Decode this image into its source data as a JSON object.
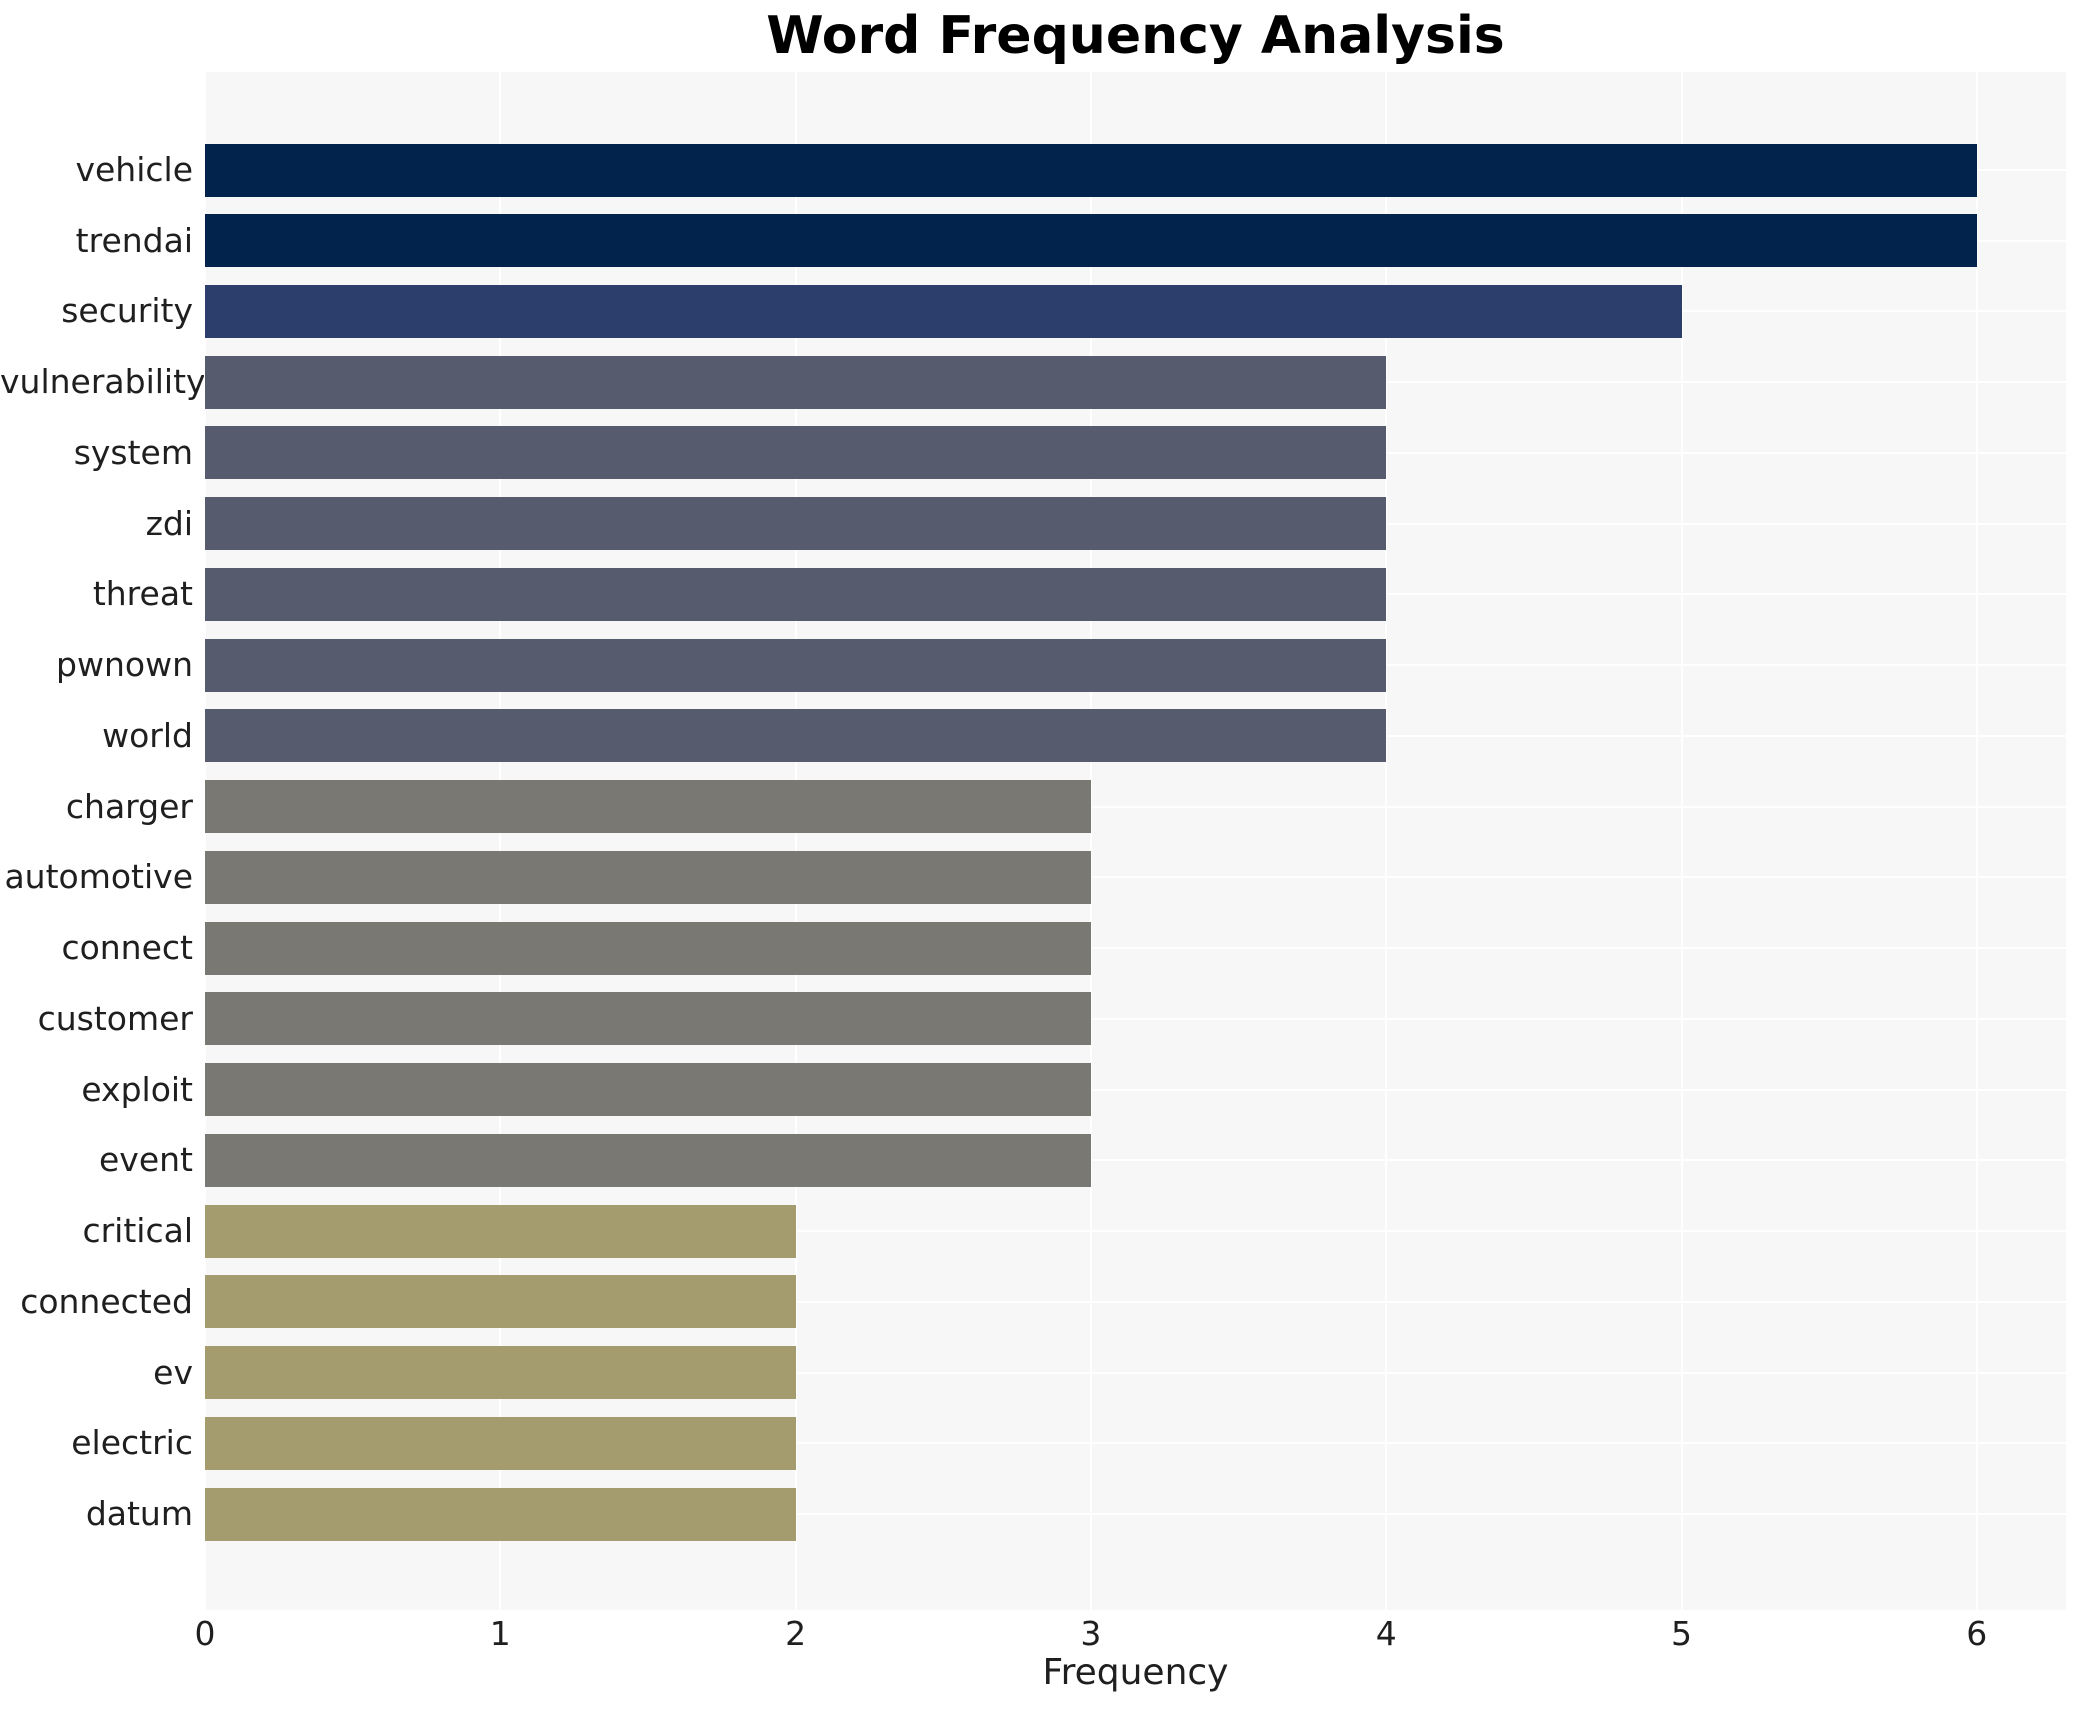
{
  "chart_data": {
    "type": "bar",
    "orientation": "horizontal",
    "title": "Word Frequency Analysis",
    "xlabel": "Frequency",
    "ylabel": "",
    "categories": [
      "vehicle",
      "trendai",
      "security",
      "vulnerability",
      "system",
      "zdi",
      "threat",
      "pwnown",
      "world",
      "charger",
      "automotive",
      "connect",
      "customer",
      "exploit",
      "event",
      "critical",
      "connected",
      "ev",
      "electric",
      "datum"
    ],
    "values": [
      6,
      6,
      5,
      4,
      4,
      4,
      4,
      4,
      4,
      3,
      3,
      3,
      3,
      3,
      3,
      2,
      2,
      2,
      2,
      2
    ],
    "bar_colors": [
      "#02234c",
      "#02234c",
      "#2c3e6b",
      "#565b6d",
      "#565b6d",
      "#565b6d",
      "#565b6d",
      "#565b6d",
      "#565b6d",
      "#7a7873",
      "#7a7873",
      "#7a7873",
      "#7a7873",
      "#7a7873",
      "#7a7873",
      "#a49b6e",
      "#a49b6e",
      "#a49b6e",
      "#a49b6e",
      "#a49b6e"
    ],
    "xticks": [
      0,
      1,
      2,
      3,
      4,
      5,
      6
    ],
    "xlim": [
      0,
      6.3
    ],
    "grid": true,
    "plot_background": "#f7f7f7",
    "gridline_color": "#ffffff",
    "legend": null
  }
}
